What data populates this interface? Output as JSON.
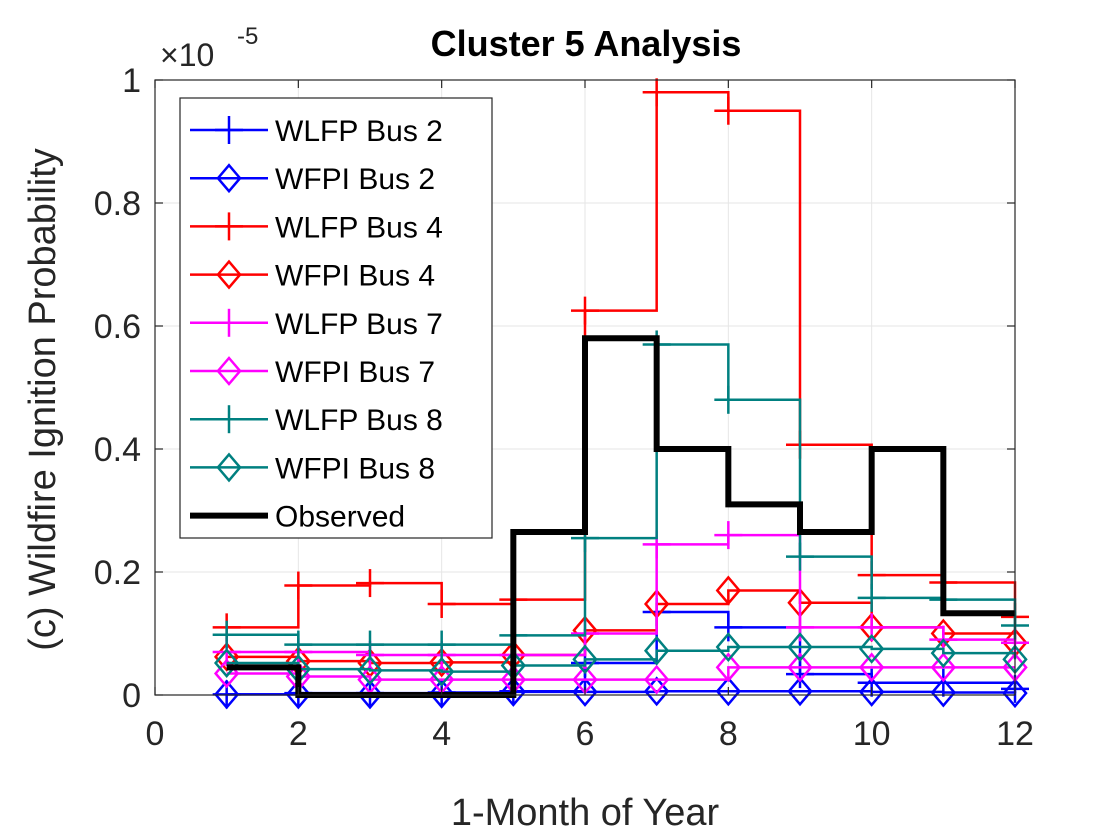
{
  "chart_data": {
    "type": "line",
    "subtype": "stairs",
    "title": "Cluster 5 Analysis",
    "xlabel": "1-Month of Year",
    "ylabel": "(c) Wildfire Ignition Probability",
    "y_exponent_prefix": "×10",
    "y_exponent_power": "-5",
    "xlim": [
      0,
      12
    ],
    "ylim": [
      0,
      1
    ],
    "xticks": [
      0,
      2,
      4,
      6,
      8,
      10,
      12
    ],
    "xtick_labels": [
      "0",
      "2",
      "4",
      "6",
      "8",
      "10",
      "12"
    ],
    "yticks": [
      0,
      0.2,
      0.4,
      0.6,
      0.8,
      1
    ],
    "ytick_labels": [
      "0",
      "0.2",
      "0.4",
      "0.6",
      "0.8",
      "1"
    ],
    "grid": true,
    "legend_position": "top-left",
    "x": [
      1,
      2,
      3,
      4,
      5,
      6,
      7,
      8,
      9,
      10,
      11,
      12
    ],
    "series": [
      {
        "name": "WLFP Bus 2",
        "color": "#0000ff",
        "marker": "plus",
        "values": [
          0.001,
          0.003,
          0.003,
          0.004,
          0.006,
          0.052,
          0.135,
          0.11,
          0.034,
          0.02,
          0.02,
          0.01
        ]
      },
      {
        "name": "WFPI Bus 2",
        "color": "#0000ff",
        "marker": "diamond",
        "values": [
          0.001,
          0.001,
          0.001,
          0.002,
          0.005,
          0.005,
          0.006,
          0.006,
          0.006,
          0.005,
          0.004,
          0.003
        ]
      },
      {
        "name": "WLFP Bus 4",
        "color": "#ff0000",
        "marker": "plus",
        "values": [
          0.11,
          0.178,
          0.182,
          0.148,
          0.155,
          0.625,
          0.98,
          0.95,
          0.407,
          0.195,
          0.183,
          0.127
        ]
      },
      {
        "name": "WFPI Bus 4",
        "color": "#ff0000",
        "marker": "diamond",
        "values": [
          0.062,
          0.055,
          0.052,
          0.053,
          0.065,
          0.105,
          0.148,
          0.17,
          0.15,
          0.11,
          0.1,
          0.085
        ]
      },
      {
        "name": "WLFP Bus 7",
        "color": "#ff00ff",
        "marker": "plus",
        "values": [
          0.07,
          0.07,
          0.065,
          0.065,
          0.065,
          0.1,
          0.245,
          0.26,
          0.11,
          0.11,
          0.09,
          0.085
        ]
      },
      {
        "name": "WFPI Bus 7",
        "color": "#ff00ff",
        "marker": "diamond",
        "values": [
          0.035,
          0.03,
          0.025,
          0.025,
          0.025,
          0.025,
          0.025,
          0.045,
          0.045,
          0.045,
          0.045,
          0.045
        ]
      },
      {
        "name": "WLFP Bus 8",
        "color": "#008080",
        "marker": "plus",
        "values": [
          0.098,
          0.082,
          0.082,
          0.082,
          0.097,
          0.255,
          0.57,
          0.48,
          0.225,
          0.158,
          0.155,
          0.113
        ]
      },
      {
        "name": "WFPI Bus 8",
        "color": "#008080",
        "marker": "diamond",
        "values": [
          0.052,
          0.042,
          0.04,
          0.038,
          0.048,
          0.058,
          0.072,
          0.078,
          0.078,
          0.075,
          0.068,
          0.058
        ]
      },
      {
        "name": "Observed",
        "color": "#000000",
        "marker": "none",
        "line_width": "thick",
        "values": [
          0.045,
          0.0,
          0.0,
          0.0,
          0.265,
          0.58,
          0.4,
          0.31,
          0.265,
          0.4,
          0.133,
          0.133
        ]
      }
    ]
  }
}
